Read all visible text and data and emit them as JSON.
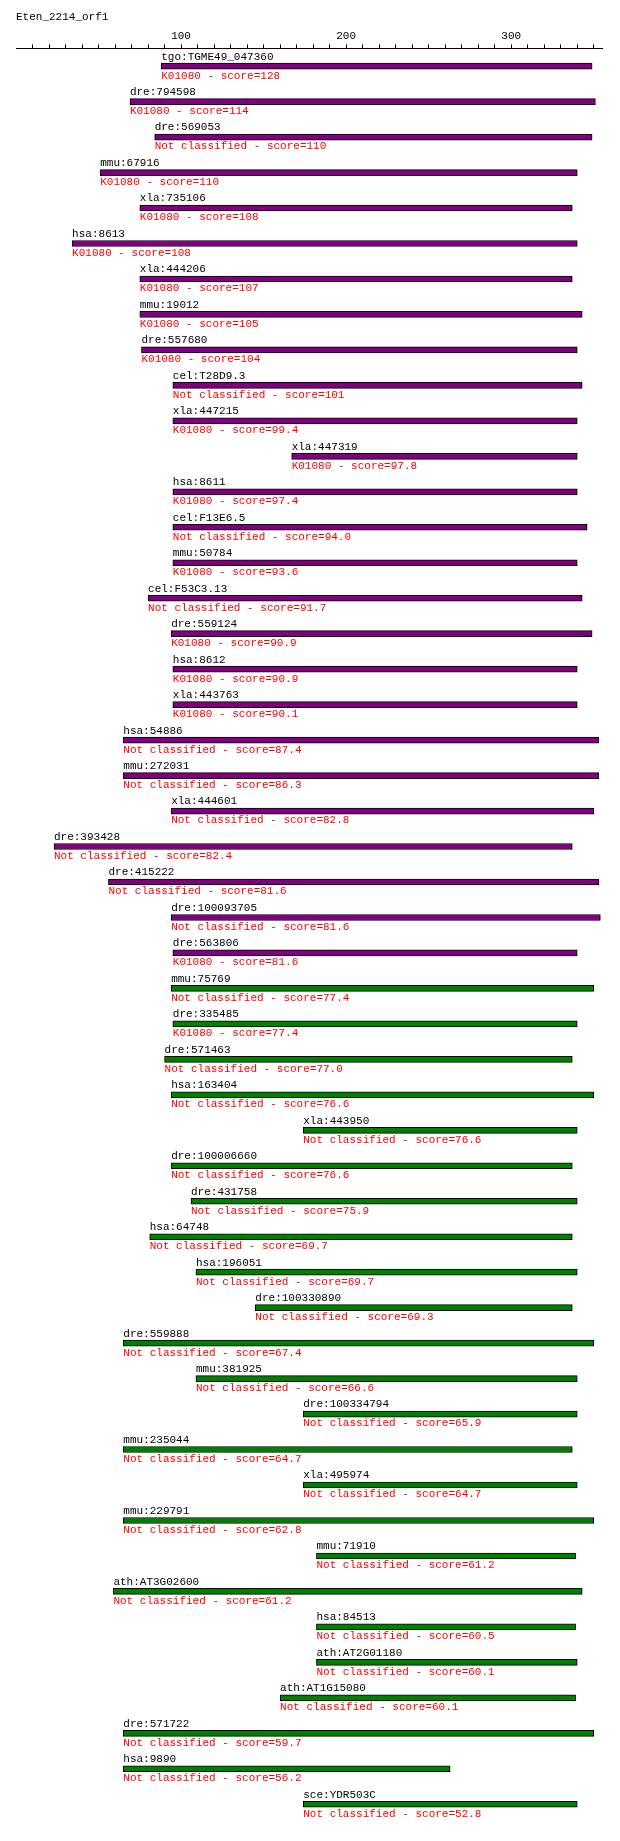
{
  "chart_data": {
    "type": "bar",
    "orientation": "horizontal",
    "title": "Eten_2214_orf1",
    "categories": [
      "tgo:TGME49_047360",
      "dre:794598",
      "dre:569053",
      "mmu:67916",
      "xla:735106",
      "hsa:8613",
      "xla:444206",
      "mmu:19012",
      "dre:557680",
      "cel:T28D9.3",
      "xla:447215",
      "xla:447319",
      "hsa:8611",
      "cel:F13E6.5",
      "mmu:50784",
      "cel:F53C3.13",
      "dre:559124",
      "hsa:8612",
      "xla:443763",
      "hsa:54886",
      "mmu:272031",
      "xla:444601",
      "dre:393428",
      "dre:415222",
      "dre:100093705",
      "dre:563806",
      "mmu:75769",
      "dre:335485",
      "dre:571463",
      "hsa:163404",
      "xla:443950",
      "dre:100006660",
      "dre:431758",
      "hsa:64748",
      "hsa:196051",
      "dre:100330890",
      "dre:559888",
      "mmu:381925",
      "dre:100334794",
      "mmu:235044",
      "xla:495974",
      "mmu:229791",
      "mmu:71910",
      "ath:AT3G02600",
      "hsa:84513",
      "ath:AT2G01180",
      "ath:AT1G15080",
      "dre:571722",
      "hsa:9890",
      "sce:YDR503C"
    ],
    "base": [
      88,
      69,
      84,
      51,
      75,
      34,
      75,
      75,
      76,
      95,
      95,
      167,
      95,
      95,
      95,
      80,
      94,
      95,
      95,
      65,
      65,
      94,
      23,
      56,
      94,
      95,
      94,
      95,
      90,
      94,
      174,
      94,
      106,
      81,
      109,
      145,
      65,
      109,
      174,
      65,
      174,
      65,
      182,
      59,
      182,
      182,
      160,
      65,
      65,
      174
    ],
    "values": [
      261,
      282,
      265,
      289,
      262,
      306,
      262,
      268,
      264,
      248,
      245,
      173,
      245,
      251,
      245,
      263,
      255,
      245,
      245,
      288,
      288,
      256,
      314,
      297,
      260,
      245,
      256,
      245,
      247,
      256,
      166,
      243,
      234,
      256,
      231,
      192,
      285,
      231,
      166,
      272,
      166,
      285,
      157,
      284,
      157,
      158,
      179,
      285,
      198,
      166
    ],
    "colors": [
      "#800080",
      "#800080",
      "#800080",
      "#800080",
      "#800080",
      "#800080",
      "#800080",
      "#800080",
      "#800080",
      "#800080",
      "#800080",
      "#800080",
      "#800080",
      "#800080",
      "#800080",
      "#800080",
      "#800080",
      "#800080",
      "#800080",
      "#800080",
      "#800080",
      "#800080",
      "#800080",
      "#800080",
      "#800080",
      "#800080",
      "#008000",
      "#008000",
      "#008000",
      "#008000",
      "#008000",
      "#008000",
      "#008000",
      "#008000",
      "#008000",
      "#008000",
      "#008000",
      "#008000",
      "#008000",
      "#008000",
      "#008000",
      "#008000",
      "#008000",
      "#008000",
      "#008000",
      "#008000",
      "#008000",
      "#008000",
      "#008000",
      "#008000"
    ],
    "annotations": [
      "K01080 - score=128",
      "K01080 - score=114",
      "Not classified - score=110",
      "K01080 - score=110",
      "K01080 - score=108",
      "K01080 - score=108",
      "K01080 - score=107",
      "K01080 - score=105",
      "K01080 - score=104",
      "Not classified - score=101",
      "K01080 - score=99.4",
      "K01080 - score=97.8",
      "K01080 - score=97.4",
      "Not classified - score=94.0",
      "K01080 - score=93.6",
      "Not classified - score=91.7",
      "K01080 - score=90.9",
      "K01080 - score=90.9",
      "K01080 - score=90.1",
      "Not classified - score=87.4",
      "Not classified - score=86.3",
      "Not classified - score=82.8",
      "Not classified - score=82.4",
      "Not classified - score=81.6",
      "Not classified - score=81.6",
      "K01080 - score=81.6",
      "Not classified - score=77.4",
      "K01080 - score=77.4",
      "Not classified - score=77.0",
      "Not classified - score=76.6",
      "Not classified - score=76.6",
      "Not classified - score=76.6",
      "Not classified - score=75.9",
      "Not classified - score=69.7",
      "Not classified - score=69.7",
      "Not classified - score=69.3",
      "Not classified - score=67.4",
      "Not classified - score=66.6",
      "Not classified - score=65.9",
      "Not classified - score=64.7",
      "Not classified - score=64.7",
      "Not classified - score=62.8",
      "Not classified - score=61.2",
      "Not classified - score=61.2",
      "Not classified - score=60.5",
      "Not classified - score=60.1",
      "Not classified - score=60.1",
      "Not classified - score=59.7",
      "Not classified - score=56.2",
      "Not classified - score=52.8"
    ],
    "xlim": [
      0,
      355
    ],
    "xticks": [
      {
        "value": 10,
        "label": null
      },
      {
        "value": 20,
        "label": null
      },
      {
        "value": 30,
        "label": null
      },
      {
        "value": 40,
        "label": null
      },
      {
        "value": 50,
        "label": null
      },
      {
        "value": 60,
        "label": null
      },
      {
        "value": 70,
        "label": null
      },
      {
        "value": 80,
        "label": null
      },
      {
        "value": 90,
        "label": null
      },
      100,
      {
        "value": 110,
        "label": null
      },
      {
        "value": 120,
        "label": null
      },
      {
        "value": 130,
        "label": null
      },
      {
        "value": 140,
        "label": null
      },
      {
        "value": 150,
        "label": null
      },
      {
        "value": 160,
        "label": null
      },
      {
        "value": 170,
        "label": null
      },
      {
        "value": 180,
        "label": null
      },
      {
        "value": 190,
        "label": null
      },
      200,
      {
        "value": 210,
        "label": null
      },
      {
        "value": 220,
        "label": null
      },
      {
        "value": 230,
        "label": null
      },
      {
        "value": 240,
        "label": null
      },
      {
        "value": 250,
        "label": null
      },
      {
        "value": 260,
        "label": null
      },
      {
        "value": 270,
        "label": null
      },
      {
        "value": 280,
        "label": null
      },
      {
        "value": 290,
        "label": null
      },
      300,
      {
        "value": 310,
        "label": null
      },
      {
        "value": 320,
        "label": null
      },
      {
        "value": 330,
        "label": null
      },
      {
        "value": 340,
        "label": null
      },
      {
        "value": 350,
        "label": null
      }
    ],
    "grid": false,
    "legend": false
  }
}
